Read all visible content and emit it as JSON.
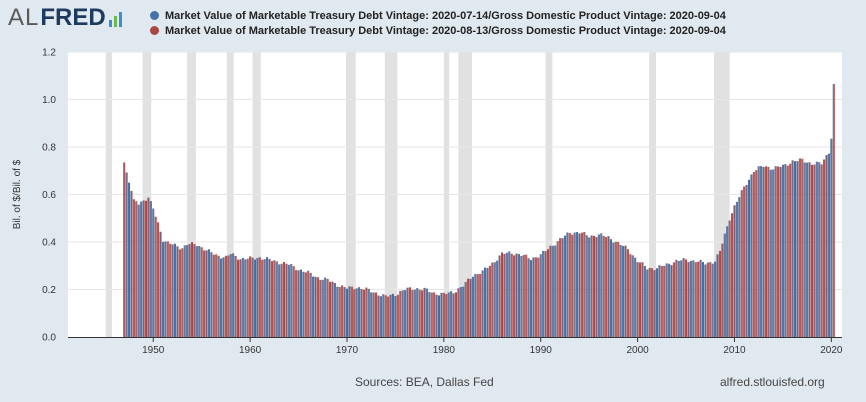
{
  "header": {
    "logo_prefix": "AL",
    "logo_main": "FRED",
    "logo_bar_colors": [
      "#3d8fd1",
      "#6cba4b",
      "#3d8fd1"
    ]
  },
  "legend": [
    {
      "label": "Market Value of Marketable Treasury Debt Vintage: 2020-07-14/Gross Domestic Product Vintage: 2020-09-04",
      "color": "#4572a7"
    },
    {
      "label": "Market Value of Marketable Treasury Debt Vintage: 2020-08-13/Gross Domestic Product Vintage: 2020-09-04",
      "color": "#aa4643"
    }
  ],
  "footer": {
    "sources": "Sources: BEA, Dallas Fed",
    "url": "alfred.stlouisfed.org"
  },
  "chart_data": {
    "type": "bar",
    "ylabel": "Bil. of $/Bil. of $",
    "xlim": [
      1941.2,
      2021.1
    ],
    "ylim": [
      0,
      1.2
    ],
    "yticks": [
      0.0,
      0.2,
      0.4,
      0.6,
      0.8,
      1.0,
      1.2
    ],
    "ytick_labels": [
      "0.0",
      "0.2",
      "0.4",
      "0.6",
      "0.8",
      "1.0",
      "1.2"
    ],
    "xticks": [
      1950,
      1960,
      1970,
      1980,
      1990,
      2000,
      2010,
      2020
    ],
    "xtick_labels": [
      "1950",
      "1960",
      "1970",
      "1980",
      "1990",
      "2000",
      "2010",
      "2020"
    ],
    "recessions": [
      [
        1945.1,
        1945.75
      ],
      [
        1948.9,
        1949.8
      ],
      [
        1953.5,
        1954.4
      ],
      [
        1957.6,
        1958.3
      ],
      [
        1960.25,
        1961.1
      ],
      [
        1969.9,
        1970.9
      ],
      [
        1973.9,
        1975.2
      ],
      [
        1980.0,
        1980.55
      ],
      [
        1981.5,
        1982.9
      ],
      [
        1990.5,
        1991.2
      ],
      [
        2001.2,
        2001.9
      ],
      [
        2007.9,
        2009.5
      ]
    ],
    "recession_color": "#e1e1e1",
    "quarterly_from": 1947,
    "anchors": [
      [
        1947.0,
        0.735
      ],
      [
        1947.5,
        0.65
      ],
      [
        1948.0,
        0.58
      ],
      [
        1948.5,
        0.565
      ],
      [
        1949.0,
        0.575
      ],
      [
        1949.5,
        0.585
      ],
      [
        1950.0,
        0.54
      ],
      [
        1950.5,
        0.48
      ],
      [
        1951.0,
        0.41
      ],
      [
        1951.5,
        0.395
      ],
      [
        1952.0,
        0.39
      ],
      [
        1953.0,
        0.375
      ],
      [
        1953.5,
        0.39
      ],
      [
        1954.5,
        0.39
      ],
      [
        1955.5,
        0.365
      ],
      [
        1956.5,
        0.345
      ],
      [
        1957.5,
        0.335
      ],
      [
        1958.0,
        0.35
      ],
      [
        1959.0,
        0.33
      ],
      [
        1960.0,
        0.33
      ],
      [
        1961.0,
        0.335
      ],
      [
        1962.0,
        0.325
      ],
      [
        1963.0,
        0.315
      ],
      [
        1964.0,
        0.305
      ],
      [
        1965.0,
        0.285
      ],
      [
        1966.0,
        0.27
      ],
      [
        1967.0,
        0.25
      ],
      [
        1968.0,
        0.24
      ],
      [
        1969.0,
        0.22
      ],
      [
        1970.0,
        0.205
      ],
      [
        1971.0,
        0.21
      ],
      [
        1972.0,
        0.2
      ],
      [
        1973.0,
        0.185
      ],
      [
        1974.0,
        0.17
      ],
      [
        1975.0,
        0.18
      ],
      [
        1976.0,
        0.2
      ],
      [
        1977.0,
        0.205
      ],
      [
        1978.0,
        0.2
      ],
      [
        1979.0,
        0.185
      ],
      [
        1980.0,
        0.18
      ],
      [
        1981.0,
        0.19
      ],
      [
        1982.0,
        0.215
      ],
      [
        1983.0,
        0.26
      ],
      [
        1984.0,
        0.275
      ],
      [
        1985.0,
        0.31
      ],
      [
        1986.0,
        0.35
      ],
      [
        1987.0,
        0.355
      ],
      [
        1988.0,
        0.345
      ],
      [
        1989.0,
        0.33
      ],
      [
        1990.0,
        0.345
      ],
      [
        1991.0,
        0.38
      ],
      [
        1992.0,
        0.41
      ],
      [
        1993.0,
        0.44
      ],
      [
        1994.0,
        0.44
      ],
      [
        1995.0,
        0.425
      ],
      [
        1996.0,
        0.43
      ],
      [
        1997.0,
        0.42
      ],
      [
        1998.0,
        0.395
      ],
      [
        1999.0,
        0.37
      ],
      [
        2000.0,
        0.32
      ],
      [
        2001.0,
        0.29
      ],
      [
        2002.0,
        0.29
      ],
      [
        2003.0,
        0.305
      ],
      [
        2004.0,
        0.32
      ],
      [
        2005.0,
        0.325
      ],
      [
        2006.0,
        0.32
      ],
      [
        2007.0,
        0.31
      ],
      [
        2008.0,
        0.32
      ],
      [
        2008.5,
        0.36
      ],
      [
        2009.0,
        0.43
      ],
      [
        2009.5,
        0.5
      ],
      [
        2010.0,
        0.55
      ],
      [
        2011.0,
        0.63
      ],
      [
        2012.0,
        0.7
      ],
      [
        2013.0,
        0.72
      ],
      [
        2014.0,
        0.71
      ],
      [
        2015.0,
        0.72
      ],
      [
        2016.0,
        0.74
      ],
      [
        2017.0,
        0.745
      ],
      [
        2018.0,
        0.73
      ],
      [
        2019.0,
        0.73
      ],
      [
        2019.75,
        0.78
      ],
      [
        2020.0,
        0.835
      ],
      [
        2020.25,
        1.065
      ]
    ]
  }
}
